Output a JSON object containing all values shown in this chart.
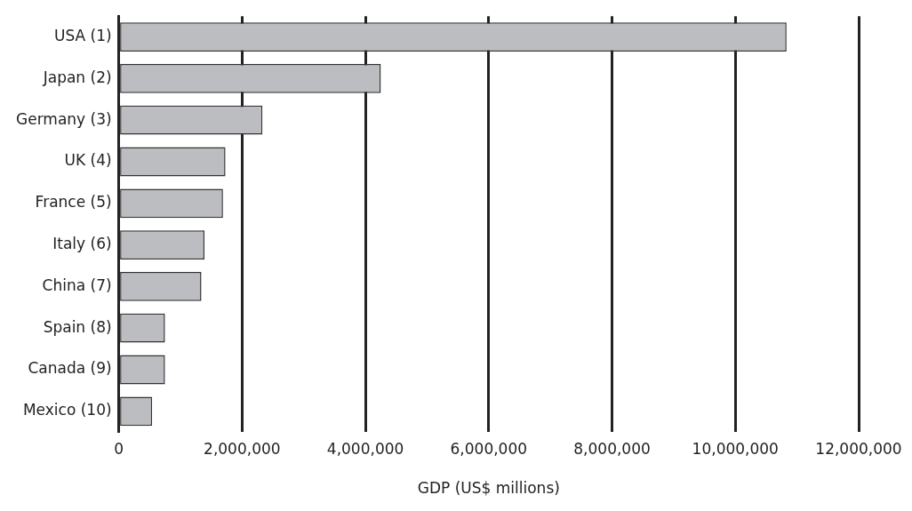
{
  "chart_data": {
    "type": "bar",
    "orientation": "horizontal",
    "xlabel": "GDP (US$ millions)",
    "categories": [
      "USA (1)",
      "Japan (2)",
      "Germany (3)",
      "UK (4)",
      "France (5)",
      "Italy (6)",
      "China (7)",
      "Spain (8)",
      "Canada (9)",
      "Mexico (10)"
    ],
    "values": [
      10830000,
      4250000,
      2330000,
      1730000,
      1690000,
      1390000,
      1340000,
      750000,
      750000,
      540000
    ],
    "color": "#bcbdc1",
    "xlim": [
      0,
      12000000
    ],
    "xticks": [
      {
        "value": 0,
        "label": "0"
      },
      {
        "value": 2000000,
        "label": "2,000,000"
      },
      {
        "value": 4000000,
        "label": "4,000,000"
      },
      {
        "value": 6000000,
        "label": "6,000,000"
      },
      {
        "value": 8000000,
        "label": "8,000,000"
      },
      {
        "value": 10000000,
        "label": "10,000,000"
      },
      {
        "value": 12000000,
        "label": "12,000,000"
      }
    ],
    "grid": "x",
    "legend": false
  }
}
